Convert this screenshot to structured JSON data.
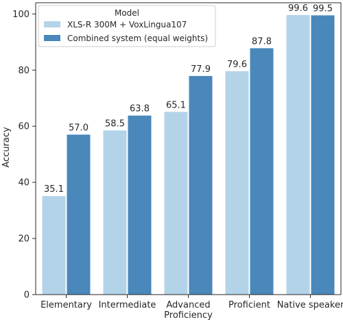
{
  "chart_data": {
    "type": "bar",
    "ylabel": "Accuracy",
    "xlabel": "",
    "ylim": [
      0,
      104
    ],
    "yticks": [
      0,
      20,
      40,
      60,
      80,
      100
    ],
    "categories": [
      [
        "Elementary"
      ],
      [
        "Intermediate"
      ],
      [
        "Advanced",
        "Proficiency"
      ],
      [
        "Proficient"
      ],
      [
        "Native speaker"
      ]
    ],
    "legend": {
      "title": "Model",
      "placement": "top-left"
    },
    "series": [
      {
        "name": "XLS-R 300M + VoxLingua107",
        "color": "#b3d3e8",
        "values": [
          35.1,
          58.5,
          65.1,
          79.6,
          99.6
        ],
        "labels": [
          "35.1",
          "58.5",
          "65.1",
          "79.6",
          "99.6"
        ]
      },
      {
        "name": "Combined system (equal weights)",
        "color": "#4a87bb",
        "values": [
          57.0,
          63.8,
          77.9,
          87.8,
          99.5
        ],
        "labels": [
          "57.0",
          "63.8",
          "77.9",
          "87.8",
          "99.5"
        ]
      }
    ]
  }
}
